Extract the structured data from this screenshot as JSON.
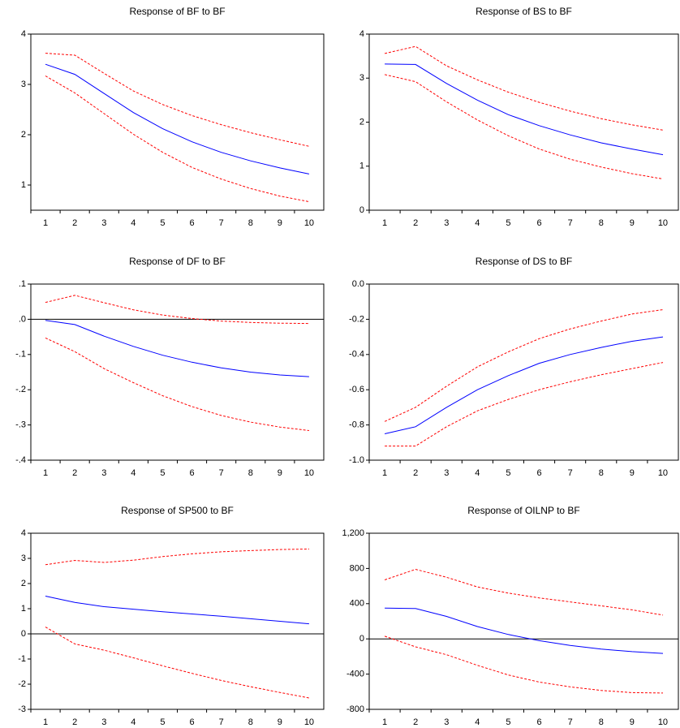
{
  "chart_data": [
    {
      "type": "line",
      "title": "Response of BF to BF",
      "categories": [
        "1",
        "2",
        "3",
        "4",
        "5",
        "6",
        "7",
        "8",
        "9",
        "10"
      ],
      "ylim": [
        0.5,
        4
      ],
      "yticks": [
        1,
        2,
        3,
        4
      ],
      "series": [
        {
          "color": "#0000ff",
          "dash": false,
          "values": [
            3.4,
            3.2,
            2.82,
            2.44,
            2.12,
            1.86,
            1.65,
            1.48,
            1.34,
            1.22
          ]
        },
        {
          "color": "#ff0000",
          "dash": true,
          "values": [
            3.62,
            3.58,
            3.22,
            2.87,
            2.6,
            2.38,
            2.2,
            2.04,
            1.9,
            1.77
          ]
        },
        {
          "color": "#ff0000",
          "dash": true,
          "values": [
            3.17,
            2.83,
            2.42,
            2.01,
            1.65,
            1.35,
            1.12,
            0.93,
            0.78,
            0.67
          ]
        }
      ]
    },
    {
      "type": "line",
      "title": "Response of BS to BF",
      "categories": [
        "1",
        "2",
        "3",
        "4",
        "5",
        "6",
        "7",
        "8",
        "9",
        "10"
      ],
      "ylim": [
        0,
        4
      ],
      "yticks": [
        0,
        1,
        2,
        3,
        4
      ],
      "series": [
        {
          "color": "#0000ff",
          "dash": false,
          "values": [
            3.32,
            3.31,
            2.88,
            2.5,
            2.17,
            1.92,
            1.71,
            1.53,
            1.39,
            1.26
          ]
        },
        {
          "color": "#ff0000",
          "dash": true,
          "values": [
            3.56,
            3.72,
            3.28,
            2.96,
            2.68,
            2.45,
            2.25,
            2.08,
            1.94,
            1.82
          ]
        },
        {
          "color": "#ff0000",
          "dash": true,
          "values": [
            3.08,
            2.92,
            2.46,
            2.05,
            1.69,
            1.39,
            1.16,
            0.98,
            0.83,
            0.71
          ]
        }
      ]
    },
    {
      "type": "line",
      "title": "Response of DF to BF",
      "categories": [
        "1",
        "2",
        "3",
        "4",
        "5",
        "6",
        "7",
        "8",
        "9",
        "10"
      ],
      "ylim": [
        -0.4,
        0.1
      ],
      "yticks": [
        {
          "value": 0.1,
          "label": ".1"
        },
        {
          "value": 0,
          "label": ".0"
        },
        {
          "value": -0.1,
          "label": "-.1"
        },
        {
          "value": -0.2,
          "label": "-.2"
        },
        {
          "value": -0.3,
          "label": "-.3"
        },
        {
          "value": -0.4,
          "label": "-.4"
        }
      ],
      "series": [
        {
          "color": "#0000ff",
          "dash": false,
          "values": [
            -0.003,
            -0.015,
            -0.048,
            -0.077,
            -0.102,
            -0.122,
            -0.138,
            -0.15,
            -0.158,
            -0.163
          ]
        },
        {
          "color": "#ff0000",
          "dash": true,
          "values": [
            0.048,
            0.068,
            0.047,
            0.027,
            0.012,
            0.002,
            -0.005,
            -0.009,
            -0.011,
            -0.012
          ]
        },
        {
          "color": "#ff0000",
          "dash": true,
          "values": [
            -0.053,
            -0.092,
            -0.14,
            -0.18,
            -0.217,
            -0.248,
            -0.273,
            -0.292,
            -0.306,
            -0.316
          ]
        }
      ]
    },
    {
      "type": "line",
      "title": "Response of DS to BF",
      "categories": [
        "1",
        "2",
        "3",
        "4",
        "5",
        "6",
        "7",
        "8",
        "9",
        "10"
      ],
      "ylim": [
        -1,
        0
      ],
      "yticks": [
        {
          "value": 0,
          "label": "0.0"
        },
        {
          "value": -0.2,
          "label": "-0.2"
        },
        {
          "value": -0.4,
          "label": "-0.4"
        },
        {
          "value": -0.6,
          "label": "-0.6"
        },
        {
          "value": -0.8,
          "label": "-0.8"
        },
        {
          "value": -1,
          "label": "-1.0"
        }
      ],
      "series": [
        {
          "color": "#0000ff",
          "dash": false,
          "values": [
            -0.85,
            -0.81,
            -0.7,
            -0.6,
            -0.52,
            -0.45,
            -0.4,
            -0.36,
            -0.325,
            -0.3
          ]
        },
        {
          "color": "#ff0000",
          "dash": true,
          "values": [
            -0.78,
            -0.7,
            -0.58,
            -0.47,
            -0.385,
            -0.31,
            -0.255,
            -0.21,
            -0.17,
            -0.145
          ]
        },
        {
          "color": "#ff0000",
          "dash": true,
          "values": [
            -0.92,
            -0.92,
            -0.81,
            -0.72,
            -0.655,
            -0.6,
            -0.555,
            -0.515,
            -0.48,
            -0.445
          ]
        }
      ]
    },
    {
      "type": "line",
      "title": "Response of SP500 to BF",
      "categories": [
        "1",
        "2",
        "3",
        "4",
        "5",
        "6",
        "7",
        "8",
        "9",
        "10"
      ],
      "ylim": [
        -3,
        4
      ],
      "yticks": [
        4,
        3,
        2,
        1,
        0,
        -1,
        -2,
        -3
      ],
      "series": [
        {
          "color": "#0000ff",
          "dash": false,
          "values": [
            1.5,
            1.25,
            1.08,
            0.98,
            0.88,
            0.79,
            0.7,
            0.6,
            0.5,
            0.4
          ]
        },
        {
          "color": "#ff0000",
          "dash": true,
          "values": [
            2.75,
            2.92,
            2.84,
            2.93,
            3.07,
            3.18,
            3.26,
            3.31,
            3.35,
            3.37
          ]
        },
        {
          "color": "#ff0000",
          "dash": true,
          "values": [
            0.27,
            -0.4,
            -0.65,
            -0.95,
            -1.27,
            -1.57,
            -1.85,
            -2.1,
            -2.33,
            -2.55
          ]
        }
      ]
    },
    {
      "type": "line",
      "title": "Response of OILNP to BF",
      "categories": [
        "1",
        "2",
        "3",
        "4",
        "5",
        "6",
        "7",
        "8",
        "9",
        "10"
      ],
      "ylim": [
        -800,
        1200
      ],
      "yticks": [
        {
          "value": 1200,
          "label": "1,200"
        },
        800,
        400,
        0,
        -400,
        -800
      ],
      "series": [
        {
          "color": "#0000ff",
          "dash": false,
          "values": [
            350,
            345,
            255,
            140,
            50,
            -20,
            -75,
            -115,
            -145,
            -165
          ]
        },
        {
          "color": "#ff0000",
          "dash": true,
          "values": [
            670,
            790,
            700,
            590,
            520,
            465,
            420,
            375,
            330,
            270
          ]
        },
        {
          "color": "#ff0000",
          "dash": true,
          "values": [
            30,
            -90,
            -180,
            -300,
            -410,
            -490,
            -545,
            -585,
            -610,
            -615
          ]
        }
      ]
    }
  ]
}
